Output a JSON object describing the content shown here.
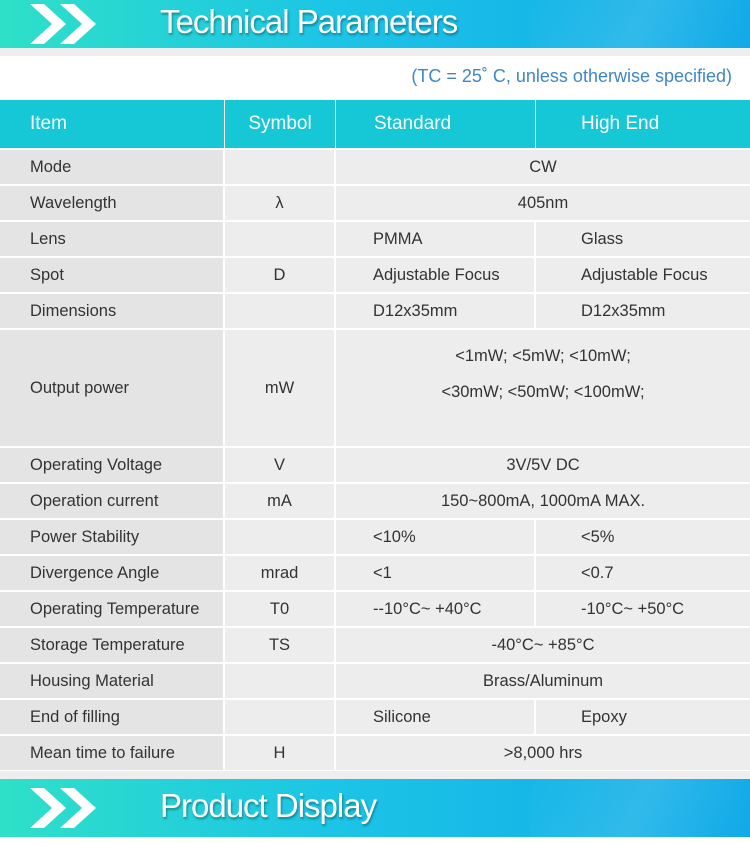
{
  "header": {
    "title": "Technical Parameters"
  },
  "note": "(TC = 25˚ C, unless otherwise specified)",
  "table": {
    "headers": {
      "item": "Item",
      "symbol": "Symbol",
      "standard": "Standard",
      "high_end": "High End"
    },
    "rows": [
      {
        "item": "Mode",
        "symbol": "",
        "value": "CW"
      },
      {
        "item": "Wavelength",
        "symbol": "λ",
        "value": "405nm"
      },
      {
        "item": "Lens",
        "symbol": "",
        "standard": "PMMA",
        "high_end": "Glass"
      },
      {
        "item": "Spot",
        "symbol": "D",
        "standard": "Adjustable Focus",
        "high_end": "Adjustable Focus"
      },
      {
        "item": "Dimensions",
        "symbol": "",
        "standard": "D12x35mm",
        "high_end": "D12x35mm"
      },
      {
        "item": "Output power",
        "symbol": "mW",
        "value_line1": "<1mW; <5mW; <10mW;",
        "value_line2": "<30mW; <50mW; <100mW;"
      },
      {
        "item": "Operating Voltage",
        "symbol": "V",
        "value": "3V/5V DC"
      },
      {
        "item": "Operation current",
        "symbol": "mA",
        "value": "150~800mA, 1000mA MAX."
      },
      {
        "item": "Power Stability",
        "symbol": "",
        "standard": "<10%",
        "high_end": "<5%"
      },
      {
        "item": "Divergence Angle",
        "symbol": "mrad",
        "standard": "<1",
        "high_end": "<0.7"
      },
      {
        "item": "Operating Temperature",
        "symbol": "T0",
        "standard": "--10°C~ +40°C",
        "high_end": "-10°C~ +50°C"
      },
      {
        "item": "Storage Temperature",
        "symbol": "TS",
        "value": "-40°C~ +85°C"
      },
      {
        "item": "Housing Material",
        "symbol": "",
        "value": "Brass/Aluminum"
      },
      {
        "item": "End of filling",
        "symbol": "",
        "standard": "Silicone",
        "high_end": "Epoxy"
      },
      {
        "item": "Mean time to failure",
        "symbol": "H",
        "value": ">8,000 hrs"
      }
    ]
  },
  "footer": {
    "title": "Product Display"
  },
  "colors": {
    "banner_start": "#2ee0c8",
    "banner_end": "#10a9e8",
    "table_header": "#16c7d6",
    "note_text": "#3f86c7"
  },
  "icons": [
    "double-chevron-right-icon"
  ]
}
